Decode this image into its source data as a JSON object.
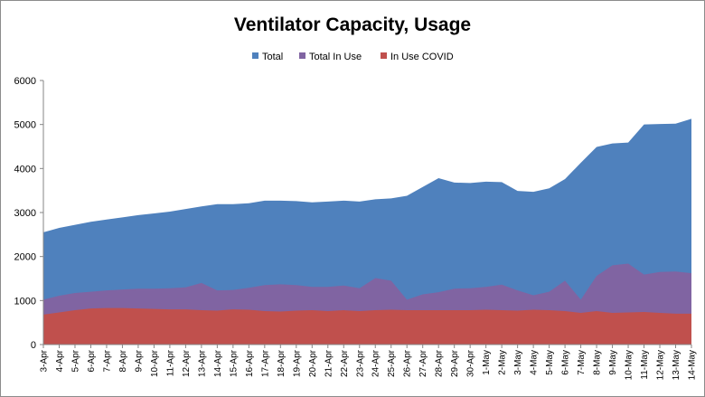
{
  "chart_data": {
    "type": "area",
    "title": "Ventilator Capacity, Usage",
    "xlabel": "",
    "ylabel": "",
    "ylim": [
      0,
      6000
    ],
    "yticks": [
      0,
      1000,
      2000,
      3000,
      4000,
      5000,
      6000
    ],
    "grid": false,
    "legend_position": "top",
    "categories": [
      "3-Apr",
      "4-Apr",
      "5-Apr",
      "6-Apr",
      "7-Apr",
      "8-Apr",
      "9-Apr",
      "10-Apr",
      "11-Apr",
      "12-Apr",
      "13-Apr",
      "14-Apr",
      "15-Apr",
      "16-Apr",
      "17-Apr",
      "18-Apr",
      "19-Apr",
      "20-Apr",
      "21-Apr",
      "22-Apr",
      "23-Apr",
      "24-Apr",
      "25-Apr",
      "26-Apr",
      "27-Apr",
      "28-Apr",
      "29-Apr",
      "30-Apr",
      "1-May",
      "2-May",
      "3-May",
      "4-May",
      "5-May",
      "6-May",
      "7-May",
      "8-May",
      "9-May",
      "10-May",
      "11-May",
      "12-May",
      "13-May",
      "14-May"
    ],
    "series": [
      {
        "name": "Total",
        "color": "#4f81bd",
        "values": [
          2550,
          2650,
          2720,
          2790,
          2840,
          2890,
          2940,
          2980,
          3020,
          3080,
          3140,
          3190,
          3190,
          3210,
          3270,
          3270,
          3260,
          3230,
          3250,
          3270,
          3250,
          3300,
          3320,
          3380,
          3580,
          3780,
          3680,
          3670,
          3700,
          3690,
          3490,
          3470,
          3550,
          3760,
          4130,
          4490,
          4570,
          4590,
          5000,
          5010,
          5020,
          5130
        ]
      },
      {
        "name": "Total In Use",
        "color": "#8064a2",
        "values": [
          1020,
          1110,
          1170,
          1200,
          1230,
          1250,
          1270,
          1270,
          1280,
          1300,
          1400,
          1230,
          1240,
          1290,
          1350,
          1370,
          1350,
          1310,
          1310,
          1340,
          1280,
          1510,
          1450,
          1020,
          1140,
          1190,
          1270,
          1280,
          1310,
          1360,
          1230,
          1120,
          1200,
          1450,
          1020,
          1560,
          1800,
          1840,
          1590,
          1650,
          1660,
          1620
        ]
      },
      {
        "name": "In Use COVID",
        "color": "#c0504d",
        "values": [
          680,
          730,
          780,
          820,
          830,
          830,
          820,
          810,
          800,
          800,
          780,
          770,
          800,
          790,
          760,
          750,
          770,
          780,
          760,
          780,
          760,
          780,
          790,
          780,
          780,
          780,
          780,
          780,
          790,
          780,
          770,
          790,
          780,
          760,
          720,
          760,
          720,
          730,
          740,
          720,
          700,
          700
        ]
      }
    ]
  }
}
